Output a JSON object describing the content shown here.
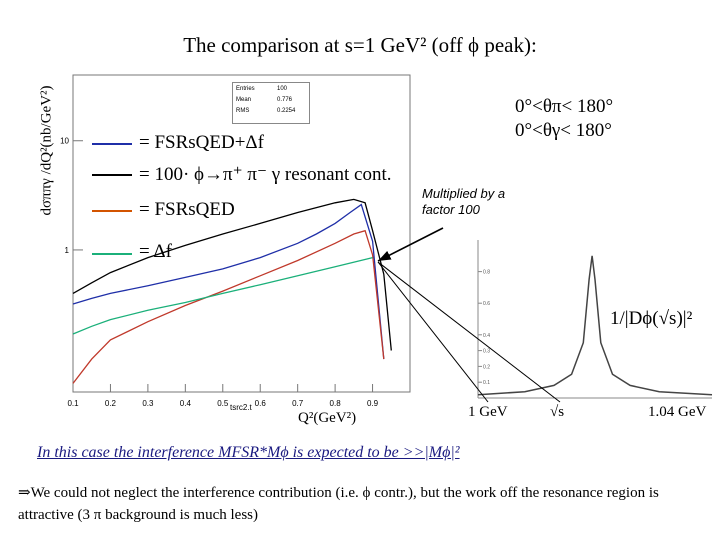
{
  "title": "The comparison at s=1 GeV² (off ϕ peak):",
  "ylabel": "dσππγ /dQ²(nb/GeV²)",
  "xlabel": "Q²(GeV²)",
  "colors": {
    "fsr_df": "#1f2fa8",
    "phi": "#000000",
    "fsr": "#c0392b",
    "df": "#1bb07a",
    "frame": "#666666"
  },
  "stats": {
    "rows": [
      [
        "Entries",
        "100"
      ],
      [
        "Mean",
        "0.776"
      ],
      [
        "RMS",
        "0.2254"
      ]
    ]
  },
  "legend": [
    {
      "label": "= FSRsQED+Δf",
      "color": "#1f2fa8"
    },
    {
      "label": "= 100· ϕ→π⁺ π⁻ γ resonant cont.",
      "color": "#000000"
    },
    {
      "label": "= FSRsQED",
      "color": "#c0392b"
    },
    {
      "label": "= Δf",
      "color": "#1bb07a"
    }
  ],
  "angles": {
    "line1": "0°<θπ< 180°",
    "line2": "0°<θγ< 180°"
  },
  "multiplied_note": {
    "line1": "Multiplied by a",
    "line2": "factor 100"
  },
  "inset": {
    "title": "1/|Dϕ(√s)|²",
    "tick_left": "1 GeV",
    "tick_mid": "√s",
    "tick_right": "1.04 GeV",
    "y_ticks": [
      "0.8",
      "0.6",
      "0.4",
      "0.3",
      "0.2",
      "0.1"
    ]
  },
  "note": "In this case the interference MFSR*Mϕ is expected to be >>|Mϕ|²",
  "conclusion": "⇒We could not neglect the interference contribution (i.e. ϕ contr.), but the work off the resonance region is attractive (3 π background is much  less)",
  "chart_data": [
    {
      "type": "line",
      "title": "",
      "xlabel": "Q²(GeV²)",
      "ylabel": "dσππγ /dQ²(nb/GeV²)",
      "scale": "log-y",
      "xlim": [
        0.1,
        1.0
      ],
      "ylim": [
        0.05,
        40
      ],
      "x_ticks": [
        "0.1",
        "0.2",
        "0.3",
        "0.4",
        "0.5",
        "0.6",
        "0.7",
        "0.8",
        "0.9"
      ],
      "y_ticks": [
        "1",
        "10"
      ],
      "x_axis_text": "tsrc2.t",
      "series": [
        {
          "name": "FSRsQED+Δf",
          "color": "#1f2fa8",
          "x": [
            0.1,
            0.15,
            0.2,
            0.3,
            0.4,
            0.5,
            0.6,
            0.7,
            0.75,
            0.8,
            0.84,
            0.87,
            0.9,
            0.93
          ],
          "y": [
            0.32,
            0.36,
            0.4,
            0.47,
            0.56,
            0.67,
            0.85,
            1.15,
            1.4,
            1.75,
            2.2,
            2.6,
            1.2,
            0.1
          ]
        },
        {
          "name": "100· ϕ→π⁺ π⁻ γ resonant cont.",
          "color": "#000000",
          "x": [
            0.1,
            0.15,
            0.2,
            0.3,
            0.4,
            0.5,
            0.6,
            0.7,
            0.8,
            0.85,
            0.88,
            0.9,
            0.93,
            0.95
          ],
          "y": [
            0.4,
            0.5,
            0.62,
            0.85,
            1.1,
            1.4,
            1.75,
            2.2,
            2.7,
            2.9,
            2.7,
            1.5,
            0.6,
            0.12
          ]
        },
        {
          "name": "FSRsQED",
          "color": "#c0392b",
          "x": [
            0.1,
            0.15,
            0.2,
            0.3,
            0.4,
            0.5,
            0.6,
            0.7,
            0.8,
            0.85,
            0.88,
            0.9,
            0.93
          ],
          "y": [
            0.06,
            0.1,
            0.15,
            0.22,
            0.31,
            0.42,
            0.58,
            0.8,
            1.15,
            1.4,
            1.5,
            0.9,
            0.1
          ]
        },
        {
          "name": "Δf",
          "color": "#1bb07a",
          "x": [
            0.1,
            0.15,
            0.2,
            0.3,
            0.4,
            0.5,
            0.6,
            0.7,
            0.8,
            0.9
          ],
          "y": [
            0.17,
            0.2,
            0.23,
            0.28,
            0.33,
            0.4,
            0.48,
            0.58,
            0.7,
            0.85
          ]
        }
      ]
    },
    {
      "type": "line",
      "title": "1/|Dϕ(√s)|²",
      "xlabel": "√s",
      "x_ticks": [
        "1 GeV",
        "√s",
        "1.04 GeV"
      ],
      "xlim": [
        1.0,
        1.04
      ],
      "ylim": [
        0,
        1
      ],
      "series": [
        {
          "name": "1/|Dϕ(√s)|²",
          "color": "#444444",
          "x": [
            1.0,
            1.008,
            1.013,
            1.016,
            1.018,
            1.019,
            1.0195,
            1.02,
            1.021,
            1.023,
            1.026,
            1.031,
            1.04
          ],
          "y": [
            0.02,
            0.04,
            0.08,
            0.15,
            0.35,
            0.75,
            0.9,
            0.75,
            0.35,
            0.15,
            0.08,
            0.04,
            0.02
          ]
        }
      ]
    }
  ]
}
